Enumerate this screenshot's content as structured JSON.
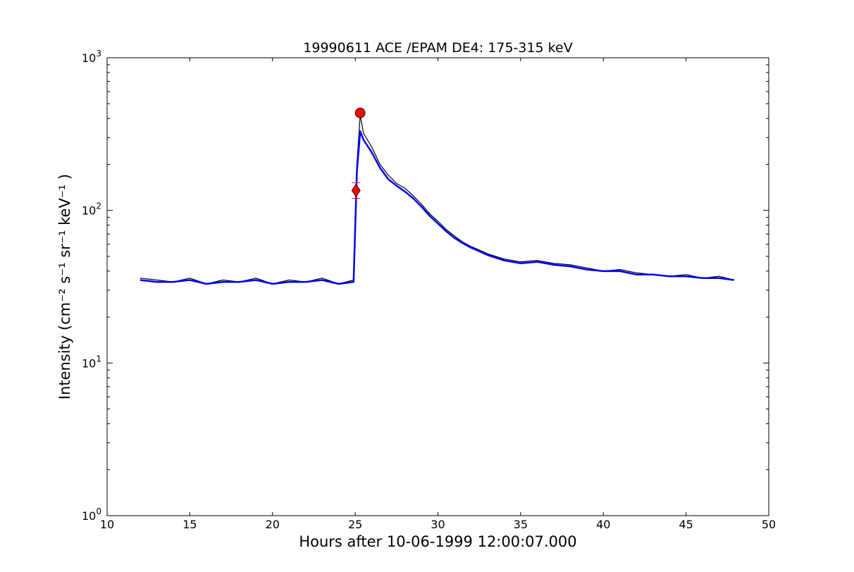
{
  "chart_data": {
    "type": "line",
    "title": "19990611 ACE /EPAM DE4: 175-315 keV",
    "xlabel": "Hours after 10-06-1999 12:00:07.000",
    "ylabel": "Intensity (cm⁻² s⁻¹ sr⁻¹ keV⁻¹ )",
    "xlim": [
      10,
      50
    ],
    "ylim": [
      1,
      1000
    ],
    "yscale": "log",
    "grid": false,
    "x_ticks": [
      "10",
      "15",
      "20",
      "25",
      "30",
      "35",
      "40",
      "45",
      "50"
    ],
    "y_ticks": [
      {
        "base": "10",
        "exp": "0"
      },
      {
        "base": "10",
        "exp": "1"
      },
      {
        "base": "10",
        "exp": "2"
      },
      {
        "base": "10",
        "exp": "3"
      }
    ],
    "colors": {
      "raw": "#000000",
      "smoothed": "#0000ff",
      "markers": "#ff0000"
    },
    "series": [
      {
        "kind": "raw",
        "x": [
          12.0,
          13.0,
          14.0,
          15.0,
          16.0,
          17.0,
          18.0,
          19.0,
          20.0,
          21.0,
          22.0,
          23.0,
          24.0,
          24.9,
          25.1,
          25.3,
          25.5,
          26.0,
          26.5,
          27.0,
          27.5,
          28.0,
          28.5,
          29.0,
          29.5,
          30.0,
          30.5,
          31.0,
          31.5,
          32.0,
          32.5,
          33.0,
          34.0,
          35.0,
          36.0,
          37.0,
          38.0,
          39.0,
          40.0,
          41.0,
          42.0,
          43.0,
          44.0,
          45.0,
          46.0,
          47.0,
          47.9
        ],
        "y": [
          36,
          35,
          34,
          36,
          33,
          35,
          34,
          36,
          33,
          35,
          34,
          36,
          33,
          35,
          200,
          420,
          320,
          260,
          200,
          170,
          150,
          140,
          125,
          110,
          95,
          85,
          75,
          68,
          62,
          58,
          55,
          52,
          48,
          46,
          47,
          45,
          44,
          42,
          40,
          41,
          39,
          38,
          37,
          38,
          36,
          37,
          35
        ]
      },
      {
        "kind": "smoothed",
        "x": [
          12.0,
          13.0,
          14.0,
          15.0,
          16.0,
          17.0,
          18.0,
          19.0,
          20.0,
          21.0,
          22.0,
          23.0,
          24.0,
          24.9,
          25.1,
          25.3,
          25.5,
          26.0,
          26.5,
          27.0,
          27.5,
          28.0,
          28.5,
          29.0,
          29.5,
          30.0,
          30.5,
          31.0,
          31.5,
          32.0,
          32.5,
          33.0,
          34.0,
          35.0,
          36.0,
          37.0,
          38.0,
          39.0,
          40.0,
          41.0,
          42.0,
          43.0,
          44.0,
          45.0,
          46.0,
          47.0,
          47.9
        ],
        "y": [
          35,
          34,
          34,
          35,
          33,
          34,
          34,
          35,
          33,
          34,
          34,
          35,
          33,
          34,
          180,
          330,
          290,
          240,
          190,
          160,
          145,
          133,
          120,
          106,
          92,
          82,
          73,
          66,
          61,
          57,
          54,
          51,
          47,
          45,
          46,
          44,
          43,
          41,
          40,
          40,
          38,
          38,
          37,
          37,
          36,
          36,
          35
        ]
      }
    ],
    "markers": [
      {
        "kind": "onset",
        "shape": "diamond",
        "x": 25.05,
        "y": 135,
        "err_lo": 120,
        "err_hi": 152
      },
      {
        "kind": "peak",
        "shape": "circle",
        "x": 25.3,
        "y": 435
      }
    ]
  }
}
